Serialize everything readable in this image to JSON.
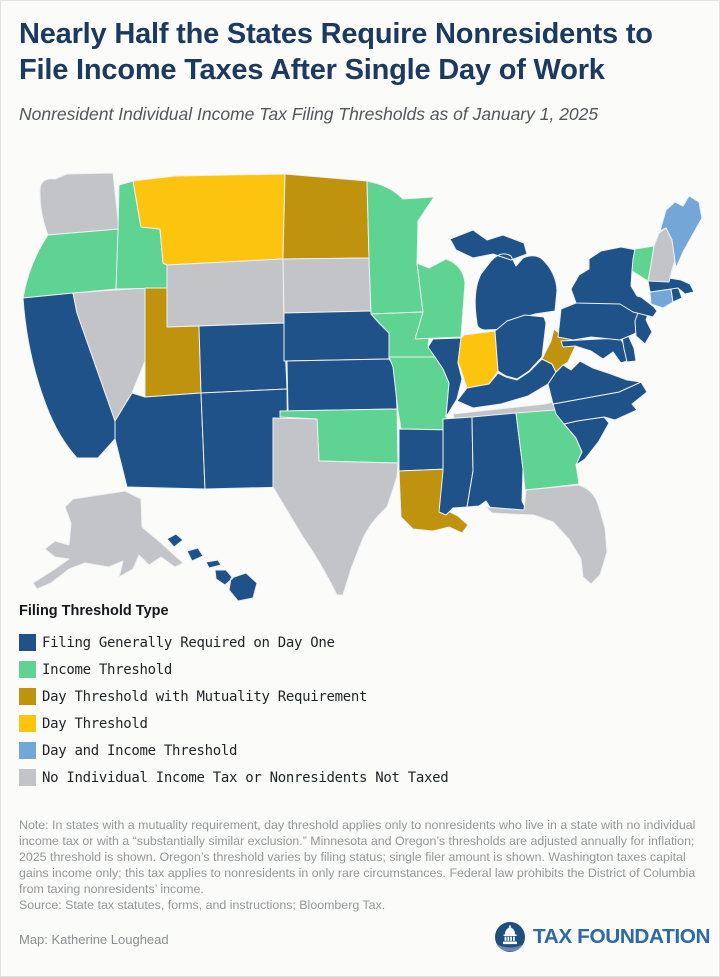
{
  "header": {
    "title": "Nearly Half the States Require Nonresidents to File Income Taxes After Single Day of Work",
    "subtitle": "Nonresident Individual Income Tax Filing Thresholds as of January 1, 2025"
  },
  "legend": {
    "title": "Filing Threshold Type",
    "items": [
      {
        "key": "day_one",
        "label": "Filing Generally Required on Day One",
        "color": "#1e5288"
      },
      {
        "key": "income",
        "label": "Income Threshold",
        "color": "#5ed392"
      },
      {
        "key": "mutuality",
        "label": "Day Threshold with Mutuality Requirement",
        "color": "#bf930d"
      },
      {
        "key": "day",
        "label": "Day Threshold",
        "color": "#fcc40e"
      },
      {
        "key": "day_income",
        "label": "Day and Income Threshold",
        "color": "#74a7d8"
      },
      {
        "key": "none",
        "label": "No Individual Income Tax or Nonresidents Not Taxed",
        "color": "#c3c4c7"
      }
    ]
  },
  "map": {
    "states": [
      {
        "id": "WA",
        "name": "Washington",
        "category": "none"
      },
      {
        "id": "OR",
        "name": "Oregon",
        "category": "income"
      },
      {
        "id": "CA",
        "name": "California",
        "category": "day_one"
      },
      {
        "id": "NV",
        "name": "Nevada",
        "category": "none"
      },
      {
        "id": "ID",
        "name": "Idaho",
        "category": "income"
      },
      {
        "id": "MT",
        "name": "Montana",
        "category": "day"
      },
      {
        "id": "WY",
        "name": "Wyoming",
        "category": "none"
      },
      {
        "id": "UT",
        "name": "Utah",
        "category": "mutuality"
      },
      {
        "id": "CO",
        "name": "Colorado",
        "category": "day_one"
      },
      {
        "id": "AZ",
        "name": "Arizona",
        "category": "day_one"
      },
      {
        "id": "NM",
        "name": "New Mexico",
        "category": "day_one"
      },
      {
        "id": "ND",
        "name": "North Dakota",
        "category": "mutuality"
      },
      {
        "id": "SD",
        "name": "South Dakota",
        "category": "none"
      },
      {
        "id": "NE",
        "name": "Nebraska",
        "category": "day_one"
      },
      {
        "id": "KS",
        "name": "Kansas",
        "category": "day_one"
      },
      {
        "id": "OK",
        "name": "Oklahoma",
        "category": "income"
      },
      {
        "id": "TX",
        "name": "Texas",
        "category": "none"
      },
      {
        "id": "MN",
        "name": "Minnesota",
        "category": "income"
      },
      {
        "id": "IA",
        "name": "Iowa",
        "category": "income"
      },
      {
        "id": "MO",
        "name": "Missouri",
        "category": "income"
      },
      {
        "id": "AR",
        "name": "Arkansas",
        "category": "day_one"
      },
      {
        "id": "LA",
        "name": "Louisiana",
        "category": "mutuality"
      },
      {
        "id": "WI",
        "name": "Wisconsin",
        "category": "income"
      },
      {
        "id": "IL",
        "name": "Illinois",
        "category": "day_one"
      },
      {
        "id": "IN",
        "name": "Indiana",
        "category": "day"
      },
      {
        "id": "MI",
        "name": "Michigan",
        "category": "day_one"
      },
      {
        "id": "OH",
        "name": "Ohio",
        "category": "day_one"
      },
      {
        "id": "KY",
        "name": "Kentucky",
        "category": "day_one"
      },
      {
        "id": "TN",
        "name": "Tennessee",
        "category": "none"
      },
      {
        "id": "MS",
        "name": "Mississippi",
        "category": "day_one"
      },
      {
        "id": "AL",
        "name": "Alabama",
        "category": "day_one"
      },
      {
        "id": "GA",
        "name": "Georgia",
        "category": "income"
      },
      {
        "id": "FL",
        "name": "Florida",
        "category": "none"
      },
      {
        "id": "SC",
        "name": "South Carolina",
        "category": "day_one"
      },
      {
        "id": "NC",
        "name": "North Carolina",
        "category": "day_one"
      },
      {
        "id": "VA",
        "name": "Virginia",
        "category": "day_one"
      },
      {
        "id": "WV",
        "name": "West Virginia",
        "category": "mutuality"
      },
      {
        "id": "MD",
        "name": "Maryland",
        "category": "day_one"
      },
      {
        "id": "DE",
        "name": "Delaware",
        "category": "day_one"
      },
      {
        "id": "PA",
        "name": "Pennsylvania",
        "category": "day_one"
      },
      {
        "id": "NJ",
        "name": "New Jersey",
        "category": "day_one"
      },
      {
        "id": "NY",
        "name": "New York",
        "category": "day_one"
      },
      {
        "id": "CT",
        "name": "Connecticut",
        "category": "day_income"
      },
      {
        "id": "RI",
        "name": "Rhode Island",
        "category": "day_one"
      },
      {
        "id": "MA",
        "name": "Massachusetts",
        "category": "day_one"
      },
      {
        "id": "VT",
        "name": "Vermont",
        "category": "income"
      },
      {
        "id": "NH",
        "name": "New Hampshire",
        "category": "none"
      },
      {
        "id": "ME",
        "name": "Maine",
        "category": "day_income"
      },
      {
        "id": "AK",
        "name": "Alaska",
        "category": "none"
      },
      {
        "id": "HI",
        "name": "Hawaii",
        "category": "day_one"
      }
    ]
  },
  "notes": {
    "note": "Note: In states with a mutuality requirement, day threshold applies only to nonresidents who live in a state with no individual income tax or with a “substantially similar exclusion.” Minnesota and Oregon’s thresholds are adjusted annually for inflation; 2025 threshold is shown. Oregon’s threshold varies by filing status; single filer amount is shown. Washington taxes capital gains income only; this tax applies to nonresidents in only rare circumstances. Federal law prohibits the District of Columbia from taxing nonresidents’ income.",
    "source": "Source: State tax statutes, forms, and instructions; Bloomberg Tax."
  },
  "footer": {
    "credit": "Map: Katherine Loughead",
    "brand": "TAX FOUNDATION"
  }
}
